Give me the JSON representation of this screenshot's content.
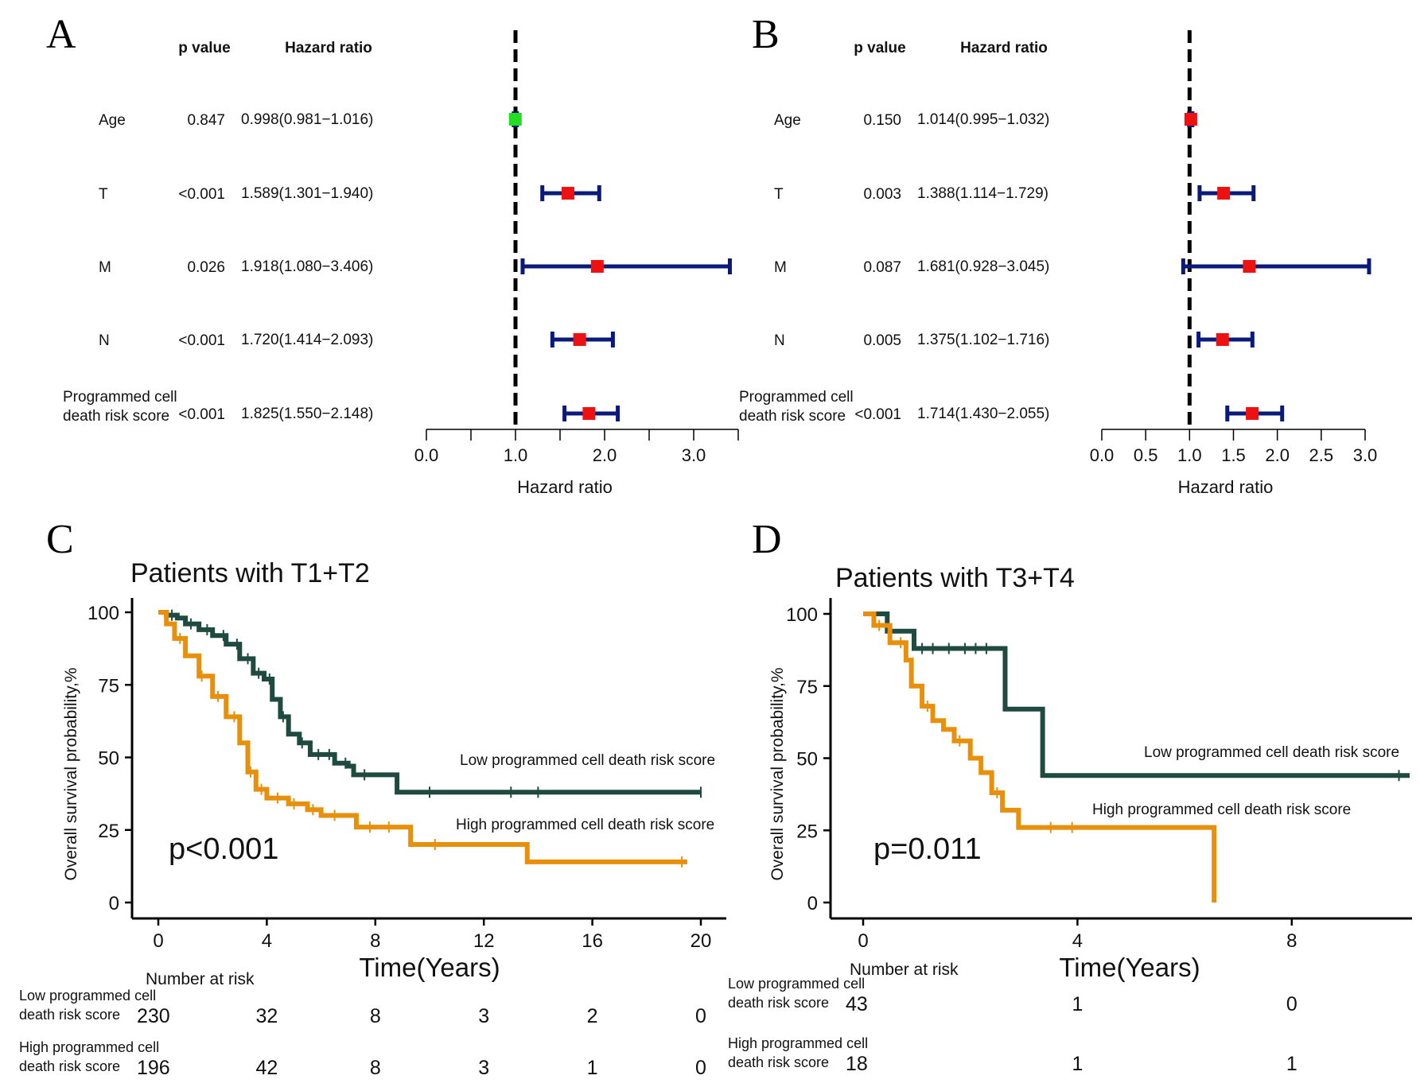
{
  "panels": {
    "A": "A",
    "B": "B",
    "C": "C",
    "D": "D"
  },
  "chart_data": [
    {
      "type": "forest",
      "panel": "A",
      "header_p": "p value",
      "header_hr": "Hazard ratio",
      "xlabel": "Hazard ratio",
      "xticks": [
        "0.0",
        "1.0",
        "2.0",
        "3.0"
      ],
      "xlim": [
        0,
        3.5
      ],
      "reference": 1,
      "rows": [
        {
          "label": [
            "Age"
          ],
          "p": "0.847",
          "hr_text": "0.998(0.981−1.016)",
          "hr": 0.998,
          "lo": 0.981,
          "hi": 1.016,
          "color": "#22dd22"
        },
        {
          "label": [
            "T"
          ],
          "p": "<0.001",
          "hr_text": "1.589(1.301−1.940)",
          "hr": 1.589,
          "lo": 1.301,
          "hi": 1.94,
          "color": "#ee1111"
        },
        {
          "label": [
            "M"
          ],
          "p": "0.026",
          "hr_text": "1.918(1.080−3.406)",
          "hr": 1.918,
          "lo": 1.08,
          "hi": 3.406,
          "color": "#ee1111"
        },
        {
          "label": [
            "N"
          ],
          "p": "<0.001",
          "hr_text": "1.720(1.414−2.093)",
          "hr": 1.72,
          "lo": 1.414,
          "hi": 2.093,
          "color": "#ee1111"
        },
        {
          "label": [
            "Programmed cell",
            "death risk score"
          ],
          "p": "<0.001",
          "hr_text": "1.825(1.550−2.148)",
          "hr": 1.825,
          "lo": 1.55,
          "hi": 2.148,
          "color": "#ee1111"
        }
      ]
    },
    {
      "type": "forest",
      "panel": "B",
      "header_p": "p value",
      "header_hr": "Hazard ratio",
      "xlabel": "Hazard ratio",
      "xticks": [
        "0.0",
        "0.5",
        "1.0",
        "1.5",
        "2.0",
        "2.5",
        "3.0"
      ],
      "xlim": [
        0,
        3.0
      ],
      "reference": 1,
      "rows": [
        {
          "label": [
            "Age"
          ],
          "p": "0.150",
          "hr_text": "1.014(0.995−1.032)",
          "hr": 1.014,
          "lo": 0.995,
          "hi": 1.032,
          "color": "#ee1111"
        },
        {
          "label": [
            "T"
          ],
          "p": "0.003",
          "hr_text": "1.388(1.114−1.729)",
          "hr": 1.388,
          "lo": 1.114,
          "hi": 1.729,
          "color": "#ee1111"
        },
        {
          "label": [
            "M"
          ],
          "p": "0.087",
          "hr_text": "1.681(0.928−3.045)",
          "hr": 1.681,
          "lo": 0.928,
          "hi": 3.045,
          "color": "#ee1111"
        },
        {
          "label": [
            "N"
          ],
          "p": "0.005",
          "hr_text": "1.375(1.102−1.716)",
          "hr": 1.375,
          "lo": 1.102,
          "hi": 1.716,
          "color": "#ee1111"
        },
        {
          "label": [
            "Programmed cell",
            "death risk score"
          ],
          "p": "<0.001",
          "hr_text": "1.714(1.430−2.055)",
          "hr": 1.714,
          "lo": 1.43,
          "hi": 2.055,
          "color": "#ee1111"
        }
      ]
    },
    {
      "type": "line",
      "subtype": "kaplan-meier",
      "panel": "C",
      "title": "Patients with T1+T2",
      "xlabel": "Time(Years)",
      "ylabel": "Overall survival probability,%",
      "xlim": [
        0,
        20
      ],
      "ylim": [
        0,
        100
      ],
      "xticks": [
        0,
        4,
        8,
        12,
        16,
        20
      ],
      "yticks": [
        0,
        25,
        50,
        75,
        100
      ],
      "pvalue": "p<0.001",
      "series": [
        {
          "name": "Low programmed cell death risk score",
          "color": "#1f4a40",
          "points": [
            [
              0,
              100
            ],
            [
              0.3,
              99
            ],
            [
              0.7,
              98
            ],
            [
              1.0,
              96
            ],
            [
              1.5,
              94
            ],
            [
              2.0,
              92
            ],
            [
              2.5,
              89
            ],
            [
              3.0,
              84
            ],
            [
              3.5,
              79
            ],
            [
              3.9,
              77
            ],
            [
              4.2,
              70
            ],
            [
              4.5,
              64
            ],
            [
              4.8,
              58
            ],
            [
              5.2,
              55
            ],
            [
              5.6,
              51
            ],
            [
              6.4,
              51
            ],
            [
              6.5,
              48
            ],
            [
              7.0,
              47
            ],
            [
              7.2,
              44
            ],
            [
              8.6,
              44
            ],
            [
              8.8,
              38
            ],
            [
              20,
              38
            ]
          ],
          "censor": [
            0.5,
            1.2,
            1.8,
            2.4,
            2.9,
            3.3,
            3.7,
            4.1,
            4.6,
            5.3,
            5.9,
            6.3,
            6.9,
            7.6,
            10,
            13,
            14,
            20
          ]
        },
        {
          "name": "High programmed cell death risk score",
          "color": "#e8900c",
          "points": [
            [
              0,
              100
            ],
            [
              0.3,
              96
            ],
            [
              0.6,
              91
            ],
            [
              1.0,
              85
            ],
            [
              1.5,
              78
            ],
            [
              2.0,
              71
            ],
            [
              2.5,
              64
            ],
            [
              3.0,
              55
            ],
            [
              3.3,
              45
            ],
            [
              3.6,
              39
            ],
            [
              4.0,
              36
            ],
            [
              4.8,
              34
            ],
            [
              5.5,
              32
            ],
            [
              6.0,
              30
            ],
            [
              7.2,
              30
            ],
            [
              7.3,
              26
            ],
            [
              9.2,
              26
            ],
            [
              9.3,
              20
            ],
            [
              13.5,
              20
            ],
            [
              13.6,
              14
            ],
            [
              19.5,
              14
            ]
          ],
          "censor": [
            0.8,
            1.6,
            2.2,
            2.8,
            3.4,
            3.8,
            4.4,
            5.0,
            5.7,
            6.5,
            7.8,
            8.5,
            10.2,
            19.3
          ]
        }
      ],
      "legend": [
        "Low programmed cell death risk score",
        "High programmed cell death risk score"
      ],
      "risk_table": {
        "heading": "Number at risk",
        "groups": [
          {
            "label": [
              "Low programmed cell",
              "death risk score"
            ],
            "counts": [
              "230",
              "32",
              "8",
              "3",
              "2",
              "0"
            ]
          },
          {
            "label": [
              "High programmed cell",
              "death risk score"
            ],
            "counts": [
              "196",
              "42",
              "8",
              "3",
              "1",
              "0"
            ]
          }
        ]
      }
    },
    {
      "type": "line",
      "subtype": "kaplan-meier",
      "panel": "D",
      "title": "Patients with T3+T4",
      "xlabel": "Time(Years)",
      "ylabel": "Overall survival probability,%",
      "xlim": [
        0,
        10.2
      ],
      "ylim": [
        0,
        100
      ],
      "xticks": [
        0,
        4,
        8
      ],
      "yticks": [
        0,
        25,
        50,
        75,
        100
      ],
      "pvalue": "p=0.011",
      "series": [
        {
          "name": "Low programmed cell death risk score",
          "color": "#1f4a40",
          "points": [
            [
              0,
              100
            ],
            [
              0.4,
              100
            ],
            [
              0.45,
              94
            ],
            [
              0.9,
              94
            ],
            [
              0.95,
              88
            ],
            [
              2.6,
              88
            ],
            [
              2.65,
              67
            ],
            [
              3.3,
              67
            ],
            [
              3.35,
              44
            ],
            [
              10.2,
              44
            ]
          ],
          "censor": [
            1.1,
            1.3,
            1.6,
            1.9,
            2.1,
            2.3,
            10.0
          ]
        },
        {
          "name": "High programmed cell death risk score",
          "color": "#e8900c",
          "points": [
            [
              0,
              100
            ],
            [
              0.2,
              96
            ],
            [
              0.5,
              90
            ],
            [
              0.8,
              84
            ],
            [
              0.9,
              75
            ],
            [
              1.1,
              68
            ],
            [
              1.3,
              63
            ],
            [
              1.5,
              60
            ],
            [
              1.7,
              56
            ],
            [
              2.0,
              50
            ],
            [
              2.2,
              45
            ],
            [
              2.4,
              38
            ],
            [
              2.6,
              32
            ],
            [
              2.9,
              26
            ],
            [
              6.5,
              26
            ],
            [
              6.55,
              0
            ]
          ],
          "censor": [
            0.3,
            0.7,
            1.2,
            1.8,
            2.5,
            3.5,
            3.9
          ]
        }
      ],
      "legend": [
        "Low programmed cell death risk score",
        "High programmed cell death risk score"
      ],
      "risk_table": {
        "heading": "Number at risk",
        "groups": [
          {
            "label": [
              "Low programmed cell",
              "death risk score"
            ],
            "counts": [
              "43",
              "1",
              "0"
            ]
          },
          {
            "label": [
              "High programmed cell",
              "death risk score"
            ],
            "counts": [
              "18",
              "1",
              "1"
            ]
          }
        ]
      }
    }
  ]
}
